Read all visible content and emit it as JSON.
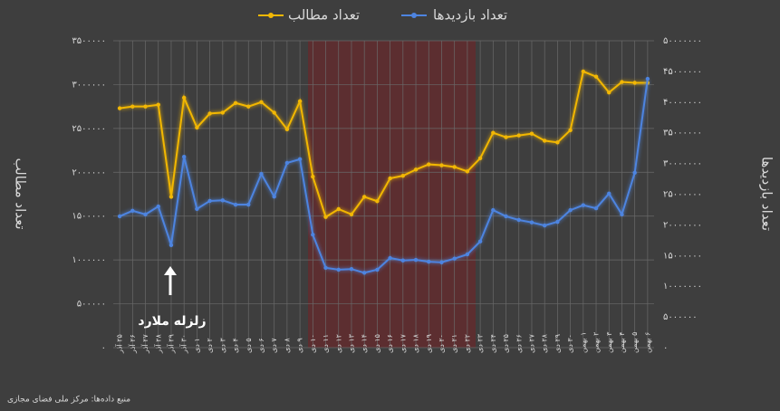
{
  "chart_data": {
    "type": "line",
    "legend": "top",
    "grid": true,
    "background": "#3e3e3e",
    "ylabel": "تعداد مطالب",
    "y2label": "تعداد بازدیدها",
    "annotation": "زلزله ملارد",
    "source": "منبع داده‌ها: مرکز ملی فضای مجازی",
    "categories": [
      "۲۵ آذر",
      "۲۶ آذر",
      "۲۷ آذر",
      "۲۸ آذر",
      "۲۹ آذر",
      "۳۰ آذر",
      "۱ دی",
      "۲ دی",
      "۳ دی",
      "۴ دی",
      "۵ دی",
      "۶ دی",
      "۷ دی",
      "۸ دی",
      "۹ دی",
      "۱۰ دی",
      "۱۱ دی",
      "۱۲ دی",
      "۱۳ دی",
      "۱۴ دی",
      "۱۵ دی",
      "۱۶ دی",
      "۱۷ دی",
      "۱۸ دی",
      "۱۹ دی",
      "۲۰ دی",
      "۲۱ دی",
      "۲۲ دی",
      "۲۳ دی",
      "۲۴ دی",
      "۲۵ دی",
      "۲۶ دی",
      "۲۷ دی",
      "۲۸ دی",
      "۲۹ دی",
      "۳۰ دی",
      "۱ بهمن",
      "۲ بهمن",
      "۳ بهمن",
      "۴ بهمن",
      "۵ بهمن",
      "۶ بهمن"
    ],
    "ylim": [
      0,
      3500000
    ],
    "yticks": [
      {
        "value": 0,
        "label": "٠"
      },
      {
        "value": 500000,
        "label": "۵۰۰۰۰۰"
      },
      {
        "value": 1000000,
        "label": "۱۰۰۰۰۰۰"
      },
      {
        "value": 1500000,
        "label": "۱۵۰۰۰۰۰"
      },
      {
        "value": 2000000,
        "label": "۲۰۰۰۰۰۰"
      },
      {
        "value": 2500000,
        "label": "۲۵۰۰۰۰۰"
      },
      {
        "value": 3000000,
        "label": "۳۰۰۰۰۰۰"
      },
      {
        "value": 3500000,
        "label": "۳۵۰۰۰۰۰"
      }
    ],
    "y2lim": [
      0,
      50000000
    ],
    "y2ticks": [
      {
        "value": 0,
        "label": "٠"
      },
      {
        "value": 5000000,
        "label": "۵۰۰۰۰۰۰"
      },
      {
        "value": 10000000,
        "label": "۱۰۰۰۰۰۰۰"
      },
      {
        "value": 15000000,
        "label": "۱۵۰۰۰۰۰۰"
      },
      {
        "value": 20000000,
        "label": "۲۰۰۰۰۰۰۰"
      },
      {
        "value": 25000000,
        "label": "۲۵۰۰۰۰۰۰"
      },
      {
        "value": 30000000,
        "label": "۳۰۰۰۰۰۰۰"
      },
      {
        "value": 35000000,
        "label": "۳۵۰۰۰۰۰۰"
      },
      {
        "value": 40000000,
        "label": "۴۰۰۰۰۰۰۰"
      },
      {
        "value": 45000000,
        "label": "۴۵۰۰۰۰۰۰"
      },
      {
        "value": 50000000,
        "label": "۵۰۰۰۰۰۰۰"
      }
    ],
    "series": [
      {
        "name": "تعداد مطالب",
        "color": "#f2b705",
        "axis": "y",
        "values": [
          2730000,
          2750000,
          2750000,
          2770000,
          1720000,
          2850000,
          2510000,
          2670000,
          2680000,
          2790000,
          2750000,
          2800000,
          2680000,
          2490000,
          2810000,
          1950000,
          1490000,
          1580000,
          1520000,
          1720000,
          1670000,
          1930000,
          1960000,
          2030000,
          2090000,
          2080000,
          2060000,
          2010000,
          2160000,
          2450000,
          2400000,
          2420000,
          2440000,
          2360000,
          2340000,
          2480000,
          3150000,
          3090000,
          2910000,
          3030000,
          3020000,
          3020000
        ]
      },
      {
        "name": "تعداد بازدیدها",
        "color": "#4d84e0",
        "axis": "y2",
        "values": [
          21400000,
          22300000,
          21700000,
          23000000,
          16700000,
          31100000,
          22600000,
          23900000,
          24000000,
          23300000,
          23300000,
          28300000,
          24600000,
          30100000,
          30700000,
          18400000,
          13000000,
          12700000,
          12800000,
          12200000,
          12700000,
          14600000,
          14200000,
          14300000,
          14000000,
          13900000,
          14500000,
          15200000,
          17300000,
          22400000,
          21400000,
          20800000,
          20400000,
          19900000,
          20500000,
          22400000,
          23200000,
          22700000,
          25100000,
          21700000,
          28500000,
          43800000
        ]
      }
    ]
  }
}
